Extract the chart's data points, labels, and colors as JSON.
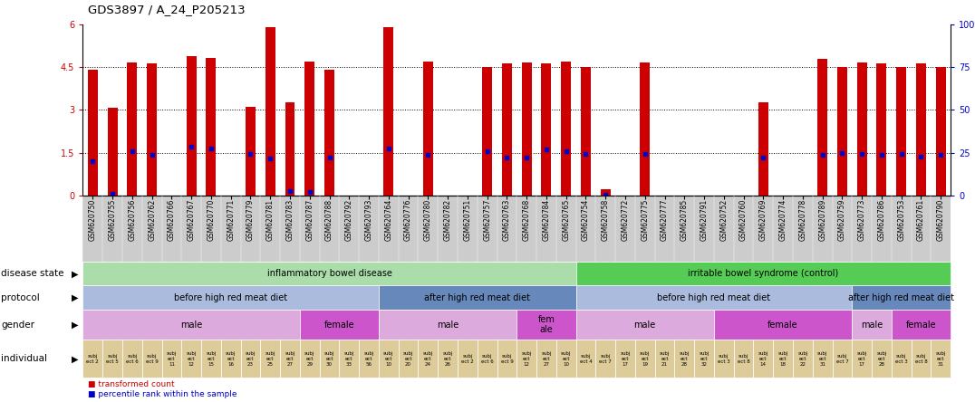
{
  "title": "GDS3897 / A_24_P205213",
  "samples": [
    "GSM620750",
    "GSM620755",
    "GSM620756",
    "GSM620762",
    "GSM620766",
    "GSM620767",
    "GSM620770",
    "GSM620771",
    "GSM620779",
    "GSM620781",
    "GSM620783",
    "GSM620787",
    "GSM620788",
    "GSM620792",
    "GSM620793",
    "GSM620764",
    "GSM620776",
    "GSM620780",
    "GSM620782",
    "GSM620751",
    "GSM620757",
    "GSM620763",
    "GSM620768",
    "GSM620784",
    "GSM620765",
    "GSM620754",
    "GSM620758",
    "GSM620772",
    "GSM620775",
    "GSM620777",
    "GSM620785",
    "GSM620791",
    "GSM620752",
    "GSM620760",
    "GSM620769",
    "GSM620774",
    "GSM620778",
    "GSM620789",
    "GSM620759",
    "GSM620773",
    "GSM620786",
    "GSM620753",
    "GSM620761",
    "GSM620790"
  ],
  "bar_heights": [
    4.4,
    3.08,
    4.65,
    4.62,
    0.0,
    4.88,
    4.82,
    0.0,
    3.12,
    5.9,
    3.28,
    4.68,
    4.42,
    0.0,
    0.0,
    5.9,
    0.0,
    4.68,
    0.0,
    0.0,
    4.5,
    4.62,
    4.65,
    4.62,
    4.7,
    4.5,
    0.22,
    0.0,
    4.65,
    0.0,
    0.0,
    0.0,
    0.0,
    0.0,
    3.28,
    0.0,
    0.0,
    4.78,
    4.5,
    4.65,
    4.62,
    4.5,
    4.62,
    4.5
  ],
  "percentile_ranks": [
    1.2,
    0.08,
    1.55,
    1.42,
    0.0,
    1.72,
    1.65,
    0.0,
    1.45,
    1.32,
    0.18,
    0.12,
    1.35,
    0.0,
    0.0,
    1.65,
    0.0,
    1.42,
    0.0,
    0.0,
    1.55,
    1.35,
    1.35,
    1.62,
    1.55,
    1.45,
    0.05,
    0.0,
    1.45,
    0.0,
    0.0,
    0.0,
    0.0,
    0.0,
    1.35,
    0.0,
    0.0,
    1.42,
    1.48,
    1.45,
    1.42,
    1.45,
    1.38,
    1.42
  ],
  "ylim": [
    0,
    6
  ],
  "yticks": [
    0,
    1.5,
    3.0,
    4.5,
    6
  ],
  "ytick_labels": [
    "0",
    "1.5",
    "3",
    "4.5",
    "6"
  ],
  "right_ytick_labels": [
    "0",
    "25",
    "50",
    "75",
    "100%"
  ],
  "bar_color": "#cc0000",
  "percentile_color": "#0000cc",
  "annotation_rows": [
    {
      "label": "disease state",
      "segments": [
        {
          "text": "inflammatory bowel disease",
          "start": 0,
          "end": 24,
          "color": "#aaddaa",
          "text_color": "#000000"
        },
        {
          "text": "irritable bowel syndrome (control)",
          "start": 25,
          "end": 43,
          "color": "#55cc55",
          "text_color": "#000000"
        }
      ]
    },
    {
      "label": "protocol",
      "segments": [
        {
          "text": "before high red meat diet",
          "start": 0,
          "end": 14,
          "color": "#aabbdd",
          "text_color": "#000000"
        },
        {
          "text": "after high red meat diet",
          "start": 15,
          "end": 24,
          "color": "#6688bb",
          "text_color": "#000000"
        },
        {
          "text": "before high red meat diet",
          "start": 25,
          "end": 38,
          "color": "#aabbdd",
          "text_color": "#000000"
        },
        {
          "text": "after high red meat diet",
          "start": 39,
          "end": 43,
          "color": "#6688bb",
          "text_color": "#000000"
        }
      ]
    },
    {
      "label": "gender",
      "segments": [
        {
          "text": "male",
          "start": 0,
          "end": 10,
          "color": "#ddaadd",
          "text_color": "#000000"
        },
        {
          "text": "female",
          "start": 11,
          "end": 14,
          "color": "#cc55cc",
          "text_color": "#000000"
        },
        {
          "text": "male",
          "start": 15,
          "end": 21,
          "color": "#ddaadd",
          "text_color": "#000000"
        },
        {
          "text": "fem\nale",
          "start": 22,
          "end": 24,
          "color": "#cc55cc",
          "text_color": "#000000"
        },
        {
          "text": "male",
          "start": 25,
          "end": 31,
          "color": "#ddaadd",
          "text_color": "#000000"
        },
        {
          "text": "female",
          "start": 32,
          "end": 38,
          "color": "#cc55cc",
          "text_color": "#000000"
        },
        {
          "text": "male",
          "start": 39,
          "end": 40,
          "color": "#ddaadd",
          "text_color": "#000000"
        },
        {
          "text": "female",
          "start": 41,
          "end": 43,
          "color": "#cc55cc",
          "text_color": "#000000"
        }
      ]
    },
    {
      "label": "individual",
      "segments": [
        {
          "text": "subj\nect 2",
          "start": 0,
          "end": 0,
          "color": "#ddcc99"
        },
        {
          "text": "subj\nect 5",
          "start": 1,
          "end": 1,
          "color": "#ddcc99"
        },
        {
          "text": "subj\nect 6",
          "start": 2,
          "end": 2,
          "color": "#ddcc99"
        },
        {
          "text": "subj\nect 9",
          "start": 3,
          "end": 3,
          "color": "#ddcc99"
        },
        {
          "text": "subj\nect\n11",
          "start": 4,
          "end": 4,
          "color": "#ddcc99"
        },
        {
          "text": "subj\nect\n12",
          "start": 5,
          "end": 5,
          "color": "#ddcc99"
        },
        {
          "text": "subj\nect\n15",
          "start": 6,
          "end": 6,
          "color": "#ddcc99"
        },
        {
          "text": "subj\nect\n16",
          "start": 7,
          "end": 7,
          "color": "#ddcc99"
        },
        {
          "text": "subj\nect\n23",
          "start": 8,
          "end": 8,
          "color": "#ddcc99"
        },
        {
          "text": "subj\nect\n25",
          "start": 9,
          "end": 9,
          "color": "#ddcc99"
        },
        {
          "text": "subj\nect\n27",
          "start": 10,
          "end": 10,
          "color": "#ddcc99"
        },
        {
          "text": "subj\nect\n29",
          "start": 11,
          "end": 11,
          "color": "#ddcc99"
        },
        {
          "text": "subj\nect\n30",
          "start": 12,
          "end": 12,
          "color": "#ddcc99"
        },
        {
          "text": "subj\nect\n33",
          "start": 13,
          "end": 13,
          "color": "#ddcc99"
        },
        {
          "text": "subj\nect\n56",
          "start": 14,
          "end": 14,
          "color": "#ddcc99"
        },
        {
          "text": "subj\nect\n10",
          "start": 15,
          "end": 15,
          "color": "#ddcc99"
        },
        {
          "text": "subj\nect\n20",
          "start": 16,
          "end": 16,
          "color": "#ddcc99"
        },
        {
          "text": "subj\nect\n24",
          "start": 17,
          "end": 17,
          "color": "#ddcc99"
        },
        {
          "text": "subj\nect\n26",
          "start": 18,
          "end": 18,
          "color": "#ddcc99"
        },
        {
          "text": "subj\nect 2",
          "start": 19,
          "end": 19,
          "color": "#ddcc99"
        },
        {
          "text": "subj\nect 6",
          "start": 20,
          "end": 20,
          "color": "#ddcc99"
        },
        {
          "text": "subj\nect 9",
          "start": 21,
          "end": 21,
          "color": "#ddcc99"
        },
        {
          "text": "subj\nect\n12",
          "start": 22,
          "end": 22,
          "color": "#ddcc99"
        },
        {
          "text": "subj\nect\n27",
          "start": 23,
          "end": 23,
          "color": "#ddcc99"
        },
        {
          "text": "subj\nect\n10",
          "start": 24,
          "end": 24,
          "color": "#ddcc99"
        },
        {
          "text": "subj\nect 4",
          "start": 25,
          "end": 25,
          "color": "#ddcc99"
        },
        {
          "text": "subj\nect 7",
          "start": 26,
          "end": 26,
          "color": "#ddcc99"
        },
        {
          "text": "subj\nect\n17",
          "start": 27,
          "end": 27,
          "color": "#ddcc99"
        },
        {
          "text": "subj\nect\n19",
          "start": 28,
          "end": 28,
          "color": "#ddcc99"
        },
        {
          "text": "subj\nect\n21",
          "start": 29,
          "end": 29,
          "color": "#ddcc99"
        },
        {
          "text": "subj\nect\n28",
          "start": 30,
          "end": 30,
          "color": "#ddcc99"
        },
        {
          "text": "subj\nect\n32",
          "start": 31,
          "end": 31,
          "color": "#ddcc99"
        },
        {
          "text": "subj\nect 3",
          "start": 32,
          "end": 32,
          "color": "#ddcc99"
        },
        {
          "text": "subj\nect 8",
          "start": 33,
          "end": 33,
          "color": "#ddcc99"
        },
        {
          "text": "subj\nect\n14",
          "start": 34,
          "end": 34,
          "color": "#ddcc99"
        },
        {
          "text": "subj\nect\n18",
          "start": 35,
          "end": 35,
          "color": "#ddcc99"
        },
        {
          "text": "subj\nect\n22",
          "start": 36,
          "end": 36,
          "color": "#ddcc99"
        },
        {
          "text": "subj\nect\n31",
          "start": 37,
          "end": 37,
          "color": "#ddcc99"
        },
        {
          "text": "subj\nect 7",
          "start": 38,
          "end": 38,
          "color": "#ddcc99"
        },
        {
          "text": "subj\nect\n17",
          "start": 39,
          "end": 39,
          "color": "#ddcc99"
        },
        {
          "text": "subj\nect\n28",
          "start": 40,
          "end": 40,
          "color": "#ddcc99"
        },
        {
          "text": "subj\nect 3",
          "start": 41,
          "end": 41,
          "color": "#ddcc99"
        },
        {
          "text": "subj\nect 8",
          "start": 42,
          "end": 42,
          "color": "#ddcc99"
        },
        {
          "text": "subj\nect\n31",
          "start": 43,
          "end": 43,
          "color": "#ddcc99"
        }
      ]
    }
  ]
}
